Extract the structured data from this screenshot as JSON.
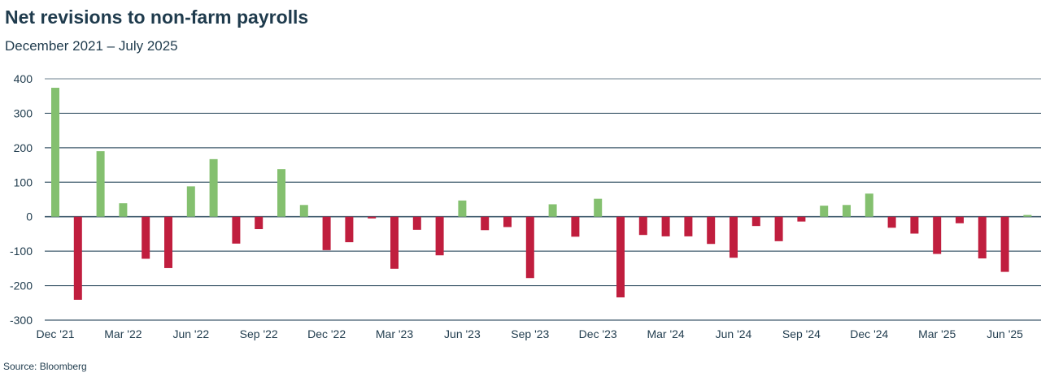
{
  "title": "Net revisions to non-farm payrolls",
  "subtitle": "December 2021 – July 2025",
  "source": "Source: Bloomberg",
  "colors": {
    "positive": "#84c06f",
    "negative": "#c01e3e",
    "grid": "#2c4a5e",
    "text": "#1f3b4d"
  },
  "chart_data": {
    "type": "bar",
    "title": "Net revisions to non-farm payrolls",
    "subtitle": "December 2021 – July 2025",
    "xlabel": "",
    "ylabel": "",
    "ylim": [
      -300,
      400
    ],
    "yticks": [
      400,
      300,
      200,
      100,
      0,
      -100,
      -200,
      -300
    ],
    "grid": true,
    "xtick_labels": [
      "Dec '21",
      "Mar '22",
      "Jun '22",
      "Sep '22",
      "Dec '22",
      "Mar '23",
      "Jun '23",
      "Sep '23",
      "Dec '23",
      "Mar '24",
      "Jun '24",
      "Sep '24",
      "Dec '24",
      "Mar '25",
      "Jun '25"
    ],
    "categories": [
      "Dec 2021",
      "Jan 2022",
      "Feb 2022",
      "Mar 2022",
      "Apr 2022",
      "May 2022",
      "Jun 2022",
      "Jul 2022",
      "Aug 2022",
      "Sep 2022",
      "Oct 2022",
      "Nov 2022",
      "Dec 2022",
      "Jan 2023",
      "Feb 2023",
      "Mar 2023",
      "Apr 2023",
      "May 2023",
      "Jun 2023",
      "Jul 2023",
      "Aug 2023",
      "Sep 2023",
      "Oct 2023",
      "Nov 2023",
      "Dec 2023",
      "Jan 2024",
      "Feb 2024",
      "Mar 2024",
      "Apr 2024",
      "May 2024",
      "Jun 2024",
      "Jul 2024",
      "Aug 2024",
      "Sep 2024",
      "Oct 2024",
      "Nov 2024",
      "Dec 2024",
      "Jan 2025",
      "Feb 2025",
      "Mar 2025",
      "Apr 2025",
      "May 2025",
      "Jun 2025",
      "Jul 2025"
    ],
    "values": [
      374,
      -241,
      190,
      39,
      -122,
      -149,
      88,
      167,
      -78,
      -36,
      138,
      34,
      -97,
      -74,
      -5,
      -151,
      -38,
      -112,
      47,
      -39,
      -30,
      -178,
      36,
      -58,
      52,
      -234,
      -53,
      -57,
      -57,
      -79,
      -119,
      -27,
      -71,
      -14,
      32,
      34,
      67,
      -32,
      -49,
      -108,
      -19,
      -121,
      -160,
      5
    ]
  }
}
